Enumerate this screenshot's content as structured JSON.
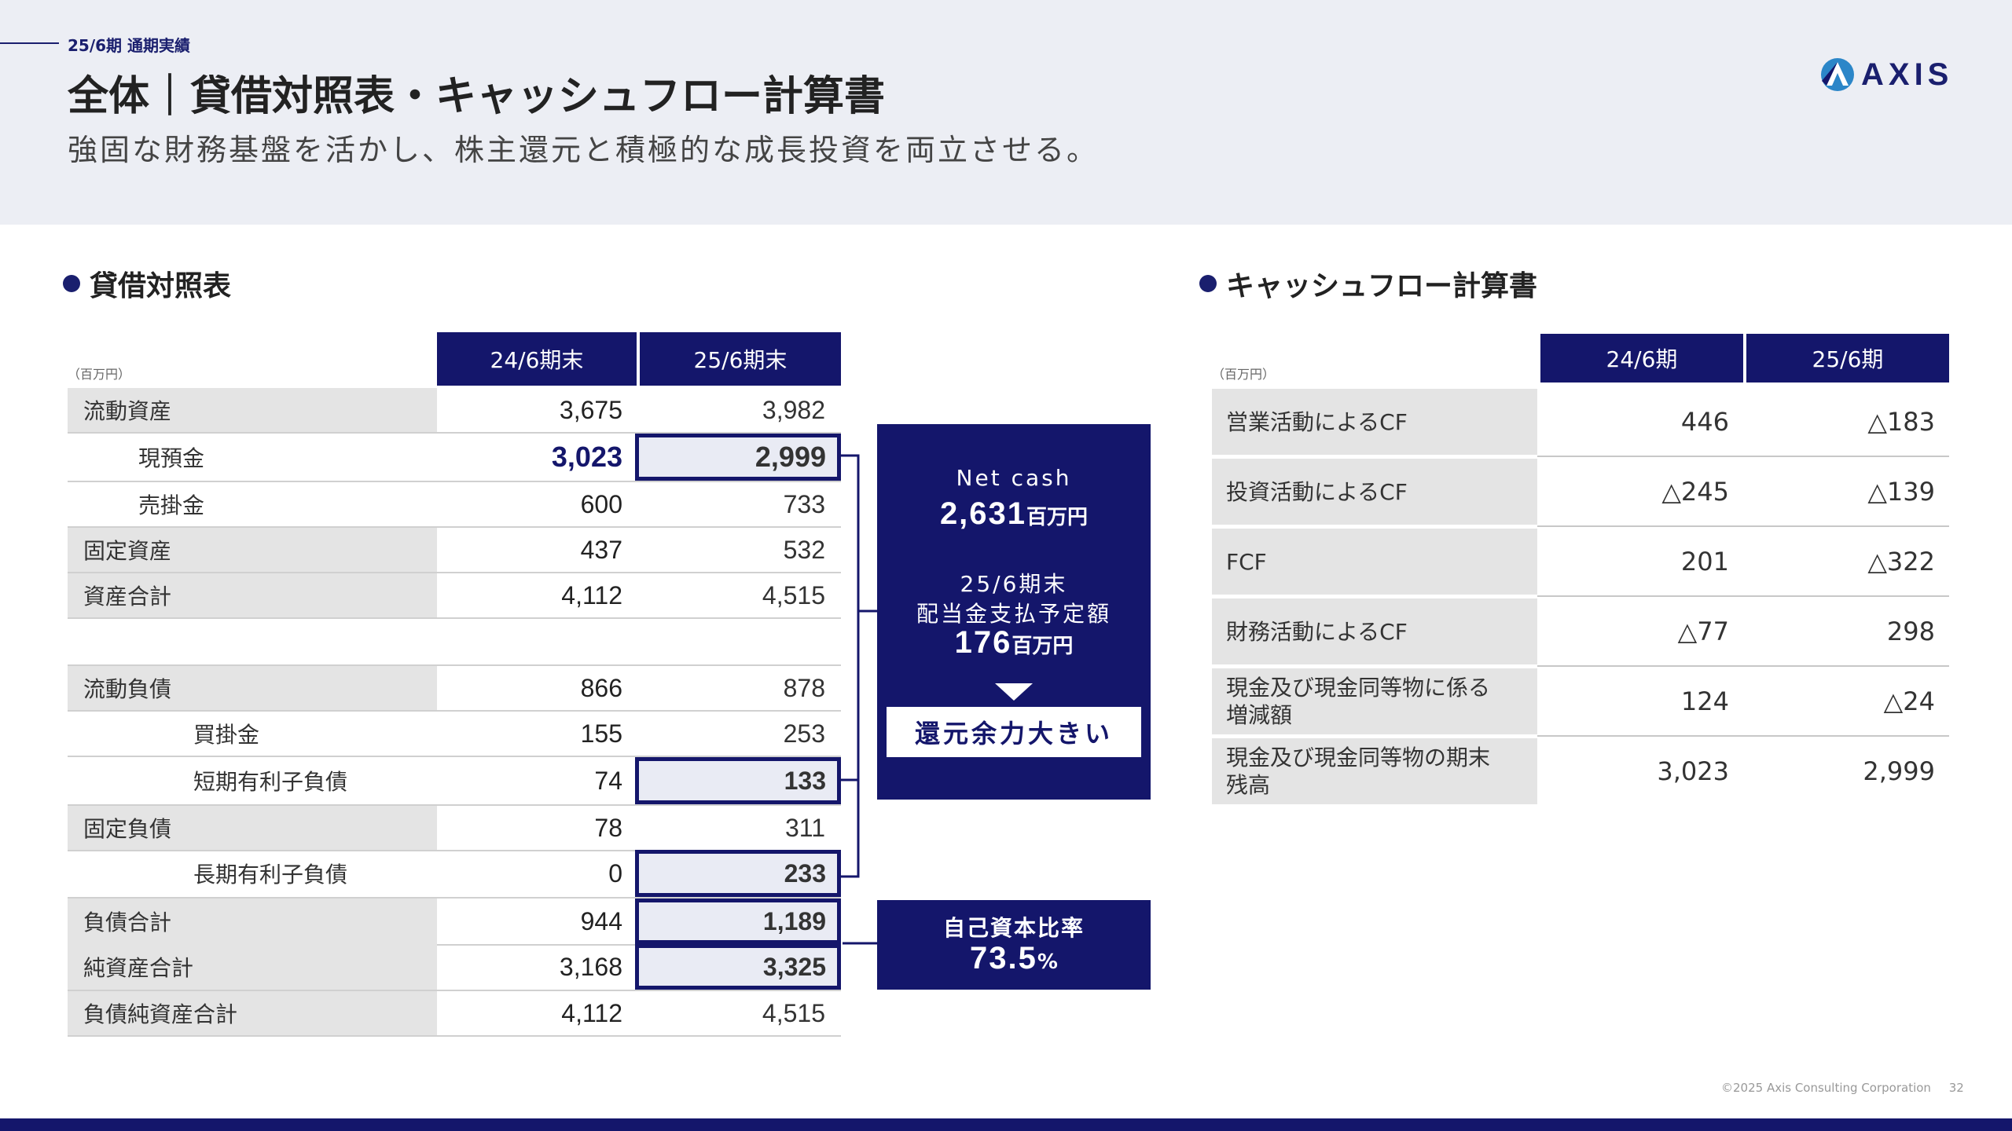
{
  "header": {
    "period_label": "25/6期 通期実績",
    "title": "全体｜貸借対照表・キャッシュフロー計算書",
    "subtitle": "強固な財務基盤を活かし、株主還元と積極的な成長投資を両立させる。",
    "logo_text": "AXIS"
  },
  "balance_sheet": {
    "title": "貸借対照表",
    "unit": "（百万円）",
    "columns": [
      "24/6期末",
      "25/6期末"
    ],
    "rows": [
      {
        "label": "流動資産",
        "v1": "3,675",
        "v2": "3,982"
      },
      {
        "label": "現預金",
        "v1": "3,023",
        "v2": "2,999"
      },
      {
        "label": "売掛金",
        "v1": "600",
        "v2": "733"
      },
      {
        "label": "固定資産",
        "v1": "437",
        "v2": "532"
      },
      {
        "label": "資産合計",
        "v1": "4,112",
        "v2": "4,515"
      },
      {
        "label": "流動負債",
        "v1": "866",
        "v2": "878"
      },
      {
        "label": "買掛金",
        "v1": "155",
        "v2": "253"
      },
      {
        "label": "短期有利子負債",
        "v1": "74",
        "v2": "133"
      },
      {
        "label": "固定負債",
        "v1": "78",
        "v2": "311"
      },
      {
        "label": "長期有利子負債",
        "v1": "0",
        "v2": "233"
      },
      {
        "label": "負債合計",
        "v1": "944",
        "v2": "1,189"
      },
      {
        "label": "純資産合計",
        "v1": "3,168",
        "v2": "3,325"
      },
      {
        "label": "負債純資産合計",
        "v1": "4,112",
        "v2": "4,515"
      }
    ]
  },
  "callout_cash": {
    "net_cash_label": "Net cash",
    "net_cash_value": "2,631",
    "net_cash_unit": "百万円",
    "dividend_line1": "25/6期末",
    "dividend_line2": "配当金支払予定額",
    "dividend_value": "176",
    "dividend_unit": "百万円",
    "conclusion": "還元余力大きい"
  },
  "callout_equity": {
    "label": "自己資本比率",
    "value": "73.5",
    "unit": "%"
  },
  "cash_flow": {
    "title": "キャッシュフロー計算書",
    "unit": "（百万円）",
    "columns": [
      "24/6期",
      "25/6期"
    ],
    "rows": [
      {
        "label": "営業活動によるCF",
        "v1": "446",
        "v2": "△183"
      },
      {
        "label": "投資活動によるCF",
        "v1": "△245",
        "v2": "△139"
      },
      {
        "label": "FCF",
        "v1": "201",
        "v2": "△322"
      },
      {
        "label": "財務活動によるCF",
        "v1": "△77",
        "v2": "298"
      },
      {
        "label": "現金及び現金同等物に係る増減額",
        "v1": "124",
        "v2": "△24"
      },
      {
        "label": "現金及び現金同等物の期末残高",
        "v1": "3,023",
        "v2": "2,999"
      }
    ]
  },
  "footer": {
    "copyright": "©2025 Axis Consulting Corporation",
    "page_number": "32"
  },
  "colors": {
    "navy": "#14166b",
    "header_bg": "#eceef4",
    "label_bg": "#e4e4e4",
    "highlight_bg": "#e9ebf4"
  }
}
